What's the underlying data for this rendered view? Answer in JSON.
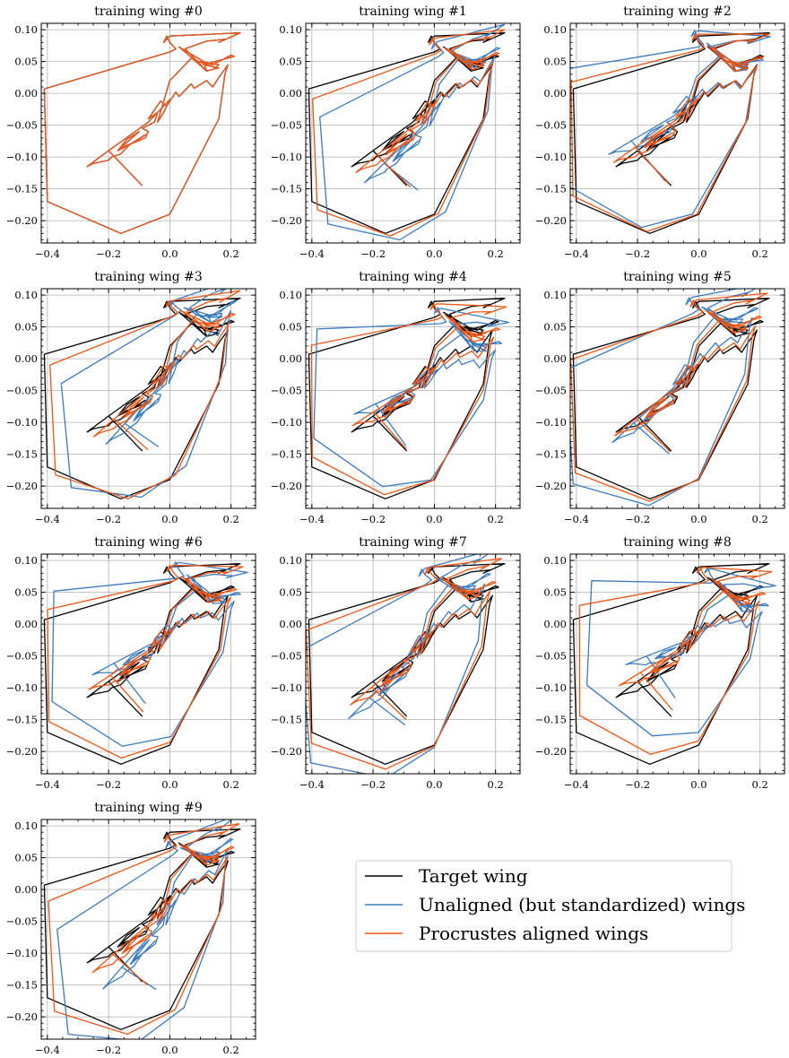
{
  "chart_data": {
    "type": "line",
    "subplot_titles": [
      "training wing #0",
      "training wing #1",
      "training wing #2",
      "training wing #3",
      "training wing #4",
      "training wing #5",
      "training wing #6",
      "training wing #7",
      "training wing #8",
      "training wing #9"
    ],
    "xlim": [
      -0.42,
      0.28
    ],
    "ylim": [
      -0.235,
      0.11
    ],
    "xticks": [
      -0.4,
      -0.2,
      0.0,
      0.2
    ],
    "xtick_labels": [
      "−0.4",
      "−0.2",
      "0.0",
      "0.2"
    ],
    "yticks": [
      0.1,
      0.05,
      0.0,
      -0.05,
      -0.1,
      -0.15,
      -0.2
    ],
    "ytick_labels": [
      "0.10",
      "0.05",
      "0.00",
      "−0.05",
      "−0.10",
      "−0.15",
      "−0.20"
    ],
    "grid": true,
    "legend_placement": "lower-right",
    "series": [
      {
        "name": "Target wing",
        "color": "#000000"
      },
      {
        "name": "Unaligned (but standardized) wings",
        "color": "#3a7bbf"
      },
      {
        "name": "Procrustes aligned wings",
        "color": "#f25511"
      }
    ],
    "target_wing": {
      "x": [
        -0.09,
        -0.2,
        -0.27,
        -0.2,
        -0.07,
        0.0,
        -0.02,
        -0.04,
        0.0,
        0.07,
        0.12,
        0.15,
        0.16,
        0.1,
        0.14,
        0.2,
        0.21,
        0.11,
        0.16,
        0.12,
        0.05,
        0.03,
        0.11,
        0.12,
        0.05,
        0.12,
        0.18,
        0.16,
        0.23,
        0.0,
        -0.02,
        -0.01,
        0.0,
        0.02,
        0.0,
        -0.41,
        -0.4,
        -0.16,
        0.0,
        0.16,
        0.18,
        0.19,
        0.16,
        0.14,
        0.12,
        0.08,
        0.07,
        0.03,
        0.02,
        -0.01,
        -0.03,
        -0.07,
        -0.04,
        -0.05,
        -0.09,
        -0.07,
        -0.08,
        -0.13,
        -0.08,
        -0.12,
        -0.16,
        -0.1,
        -0.14,
        -0.17,
        -0.13,
        -0.16,
        -0.19,
        -0.2,
        -0.25,
        -0.27
      ],
      "y": [
        -0.145,
        -0.09,
        -0.115,
        -0.09,
        -0.045,
        -0.01,
        -0.03,
        -0.045,
        0.02,
        0.055,
        0.045,
        0.04,
        0.045,
        0.05,
        0.045,
        0.06,
        0.058,
        0.045,
        0.04,
        0.035,
        0.065,
        0.073,
        0.05,
        0.035,
        0.07,
        0.082,
        0.085,
        0.08,
        0.095,
        0.09,
        0.08,
        0.09,
        0.08,
        0.07,
        0.065,
        0.007,
        -0.17,
        -0.22,
        -0.19,
        -0.04,
        0.03,
        0.045,
        0.025,
        0.01,
        0.02,
        0.008,
        0.015,
        -0.005,
        0.002,
        -0.02,
        -0.012,
        -0.04,
        -0.03,
        -0.045,
        -0.055,
        -0.06,
        -0.07,
        -0.08,
        -0.065,
        -0.078,
        -0.085,
        -0.06,
        -0.072,
        -0.09,
        -0.08,
        -0.095,
        -0.1,
        -0.105,
        -0.11,
        -0.115
      ]
    }
  },
  "legend": {
    "target_label": "Target wing",
    "unaligned_label": "Unaligned (but standardized) wings",
    "aligned_label": "Procrustes aligned wings"
  }
}
